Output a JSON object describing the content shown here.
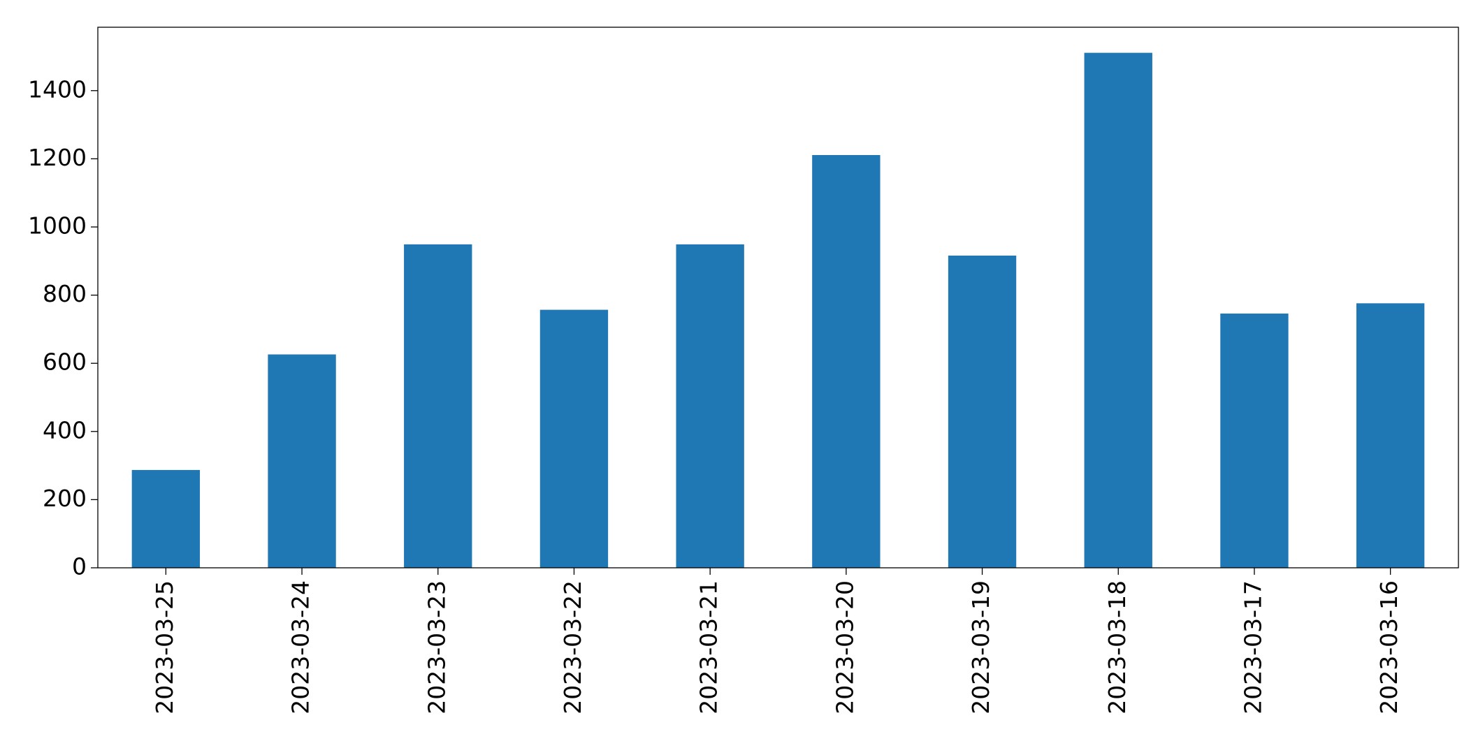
{
  "chart_data": {
    "type": "bar",
    "categories": [
      "2023-03-25",
      "2023-03-24",
      "2023-03-23",
      "2023-03-22",
      "2023-03-21",
      "2023-03-20",
      "2023-03-19",
      "2023-03-18",
      "2023-03-17",
      "2023-03-16"
    ],
    "values": [
      287,
      626,
      949,
      757,
      949,
      1211,
      916,
      1511,
      746,
      776
    ],
    "color": "#1f77b4",
    "ylim": [
      0,
      1586
    ],
    "yticks": [
      0,
      200,
      400,
      600,
      800,
      1000,
      1200,
      1400
    ],
    "grid": false
  }
}
